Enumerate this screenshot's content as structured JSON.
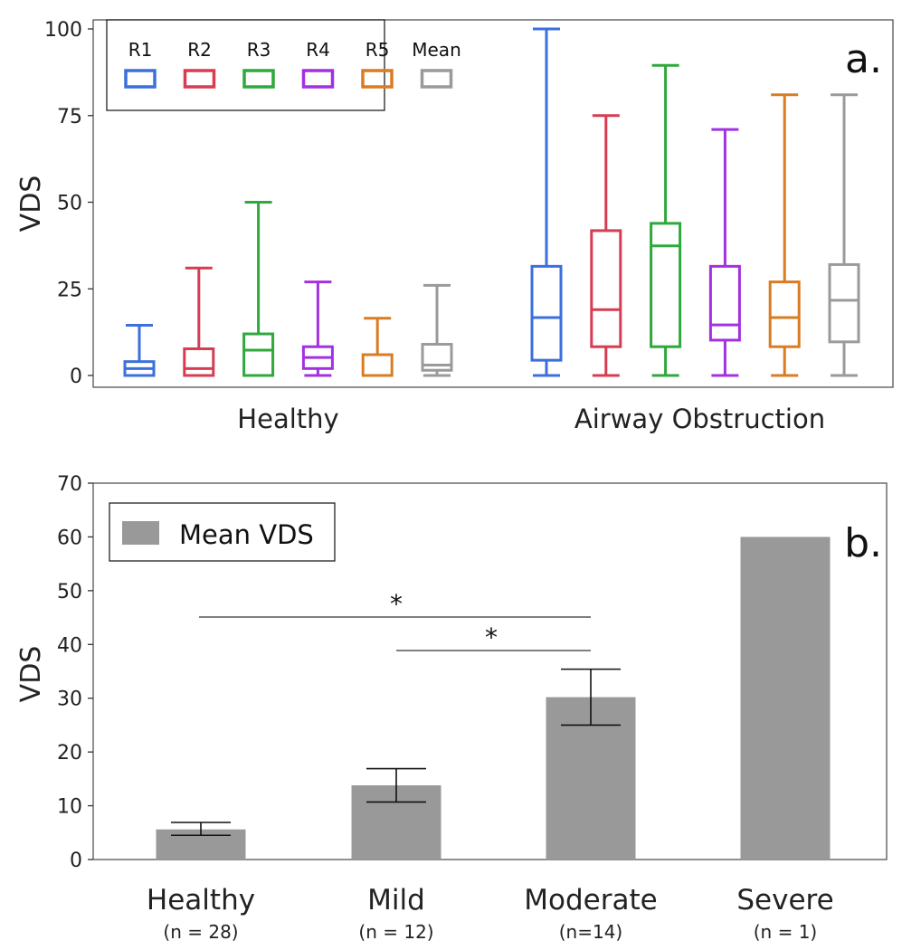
{
  "chart_data": [
    {
      "type": "box",
      "panel_label": "a.",
      "ylabel": "VDS",
      "ylim": [
        0,
        100
      ],
      "yticks": [
        0,
        25,
        50,
        75,
        100
      ],
      "legend": {
        "placement": "top-left",
        "entries": [
          "R1",
          "R2",
          "R3",
          "R4",
          "R5",
          "Mean"
        ]
      },
      "colors": {
        "R1": "#3b6fdc",
        "R2": "#d63c52",
        "R3": "#2fa83d",
        "R4": "#a231e0",
        "R5": "#d97c22",
        "Mean": "#9a9a9a"
      },
      "groups": [
        {
          "label": "Healthy",
          "boxes": [
            {
              "series": "R1",
              "min": 0,
              "q1": 0,
              "median": 2,
              "q3": 4,
              "max": 14.5
            },
            {
              "series": "R2",
              "min": 0,
              "q1": 0,
              "median": 2,
              "q3": 7.7,
              "max": 31
            },
            {
              "series": "R3",
              "min": 0,
              "q1": 0,
              "median": 7.3,
              "q3": 12,
              "max": 50
            },
            {
              "series": "R4",
              "min": 0,
              "q1": 2,
              "median": 5.2,
              "q3": 8.3,
              "max": 27
            },
            {
              "series": "R5",
              "min": 0,
              "q1": 0,
              "median": 0,
              "q3": 6,
              "max": 16.5
            },
            {
              "series": "Mean",
              "min": 0,
              "q1": 1.5,
              "median": 3,
              "q3": 9,
              "max": 26
            }
          ]
        },
        {
          "label": "Airway Obstruction",
          "boxes": [
            {
              "series": "R1",
              "min": 0,
              "q1": 4.4,
              "median": 16.7,
              "q3": 31.5,
              "max": 100
            },
            {
              "series": "R2",
              "min": 0,
              "q1": 8.3,
              "median": 19,
              "q3": 41.8,
              "max": 75
            },
            {
              "series": "R3",
              "min": 0,
              "q1": 8.3,
              "median": 37.4,
              "q3": 43.9,
              "max": 89.5
            },
            {
              "series": "R4",
              "min": 0,
              "q1": 10.2,
              "median": 14.6,
              "q3": 31.5,
              "max": 71
            },
            {
              "series": "R5",
              "min": 0,
              "q1": 8.3,
              "median": 16.7,
              "q3": 27,
              "max": 81
            },
            {
              "series": "Mean",
              "min": 0,
              "q1": 9.7,
              "median": 21.7,
              "q3": 32,
              "max": 81
            }
          ]
        }
      ]
    },
    {
      "type": "bar",
      "panel_label": "b.",
      "ylabel": "VDS",
      "ylim": [
        0,
        70
      ],
      "yticks": [
        0,
        10,
        20,
        30,
        40,
        50,
        60,
        70
      ],
      "legend": {
        "placement": "top-left",
        "entries": [
          "Mean VDS"
        ]
      },
      "bar_color": "#999999",
      "categories": [
        "Healthy",
        "Mild",
        "Moderate",
        "Severe"
      ],
      "category_sublabels": [
        "(n = 28)",
        "(n = 12)",
        "(n=14)",
        "(n = 1)"
      ],
      "series": [
        {
          "name": "Mean VDS",
          "values": [
            5.6,
            13.8,
            30.2,
            60
          ]
        }
      ],
      "error_bars": [
        [
          4.5,
          6.9
        ],
        [
          10.7,
          16.9
        ],
        [
          25,
          35.4
        ],
        null
      ],
      "significance": [
        {
          "from": "Healthy",
          "to": "Moderate",
          "label": "*"
        },
        {
          "from": "Mild",
          "to": "Moderate",
          "label": "*"
        }
      ]
    }
  ]
}
